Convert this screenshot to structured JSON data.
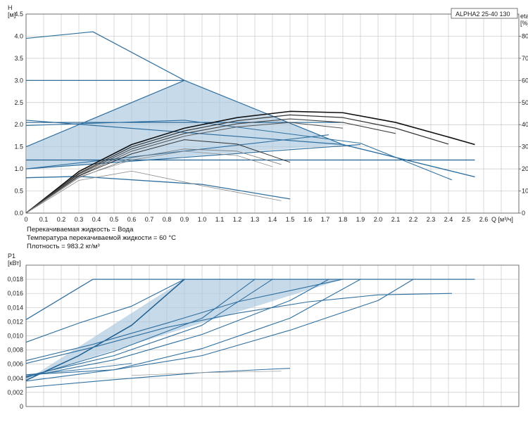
{
  "chart_data": [
    {
      "type": "line",
      "model_label": "ALPHA2 25-40 130",
      "ylabel_lines": [
        "H",
        "[м]"
      ],
      "y2label_lines": [
        "eta",
        "[%]"
      ],
      "xlabel": "Q [м³/ч]",
      "xlim": [
        0,
        2.8
      ],
      "ylim": [
        0,
        4.5
      ],
      "y2lim": [
        0,
        90
      ],
      "x_ticks": [
        "0",
        "0.1",
        "0.2",
        "0.3",
        "0.4",
        "0.5",
        "0.6",
        "0.7",
        "0.8",
        "0.9",
        "1.0",
        "1.1",
        "1.2",
        "1.3",
        "1.4",
        "1.5",
        "1.6",
        "1.7",
        "1.8",
        "1.9",
        "2.0",
        "2.1",
        "2.2",
        "2.3",
        "2.4",
        "2.5",
        "2.6"
      ],
      "y_ticks": [
        "0.0",
        "0.5",
        "1.0",
        "1.5",
        "2.0",
        "2.5",
        "3.0",
        "3.5",
        "4.0",
        "4.5"
      ],
      "y2_ticks": [
        "0",
        "10",
        "20",
        "30",
        "40",
        "50",
        "60",
        "70",
        "80"
      ],
      "notes": [
        "Перекачиваемая жидкость = Вода",
        "Температура перекачиваемой жидкости = 60 °C",
        "Плотность = 983.2 кг/м³"
      ],
      "area": {
        "name": "",
        "points": [
          [
            0,
            1.5
          ],
          [
            0.9,
            3.0
          ],
          [
            1.8,
            1.55
          ],
          [
            0,
            1.0
          ]
        ]
      },
      "series": [
        {
          "points": [
            [
              0,
              3.95
            ],
            [
              0.38,
              4.1
            ],
            [
              0.9,
              3.0
            ],
            [
              1.8,
              1.55
            ],
            [
              2.55,
              0.82
            ]
          ],
          "color": "#2f6f9f",
          "width": 1.2
        },
        {
          "points": [
            [
              0,
              3.0
            ],
            [
              0.9,
              3.0
            ]
          ],
          "color": "#1f5f90",
          "width": 1.2
        },
        {
          "points": [
            [
              0,
              2.1
            ],
            [
              1.8,
              1.55
            ],
            [
              2.55,
              0.82
            ]
          ],
          "color": "#2f6f9f",
          "width": 1.2
        },
        {
          "points": [
            [
              0,
              2.05
            ],
            [
              1.8,
              2.05
            ]
          ],
          "color": "#1f5f90",
          "width": 1.2
        },
        {
          "points": [
            [
              0,
              1.5
            ],
            [
              0.9,
              3.0
            ]
          ],
          "color": "#2f6f9f",
          "width": 1.2
        },
        {
          "points": [
            [
              0,
              1.2
            ],
            [
              2.55,
              1.2
            ]
          ],
          "color": "#1f5f90",
          "width": 1.2
        },
        {
          "points": [
            [
              0,
              1.0
            ],
            [
              1.9,
              1.55
            ]
          ],
          "color": "#2f6f9f",
          "width": 1.2
        },
        {
          "points": [
            [
              0,
              1.0
            ],
            [
              1.72,
              1.77
            ]
          ],
          "color": "#2f6f9f",
          "width": 1.1
        },
        {
          "points": [
            [
              0,
              0.8
            ],
            [
              0.3,
              0.83
            ],
            [
              1.0,
              0.65
            ],
            [
              1.5,
              0.32
            ]
          ],
          "color": "#2f6f9f",
          "width": 1.3
        },
        {
          "points": [
            [
              0,
              1.98
            ],
            [
              0.9,
              2.1
            ],
            [
              1.9,
              1.58
            ],
            [
              2.42,
              0.75
            ]
          ],
          "color": "#2f6f9f",
          "width": 1.1
        },
        {
          "points": [
            [
              0,
              0
            ],
            [
              0.3,
              0.94
            ],
            [
              0.6,
              1.55
            ],
            [
              0.9,
              1.92
            ],
            [
              1.2,
              2.16
            ],
            [
              1.5,
              2.3
            ],
            [
              1.8,
              2.27
            ],
            [
              2.1,
              2.05
            ],
            [
              2.4,
              1.72
            ],
            [
              2.55,
              1.55
            ]
          ],
          "color": "#111111",
          "width": 1.6
        },
        {
          "points": [
            [
              0,
              0
            ],
            [
              0.3,
              0.9
            ],
            [
              0.6,
              1.5
            ],
            [
              0.9,
              1.86
            ],
            [
              1.2,
              2.09
            ],
            [
              1.5,
              2.22
            ],
            [
              1.8,
              2.16
            ],
            [
              2.1,
              1.92
            ],
            [
              2.4,
              1.56
            ]
          ],
          "color": "#333333",
          "width": 1.2
        },
        {
          "points": [
            [
              0,
              0
            ],
            [
              0.3,
              0.88
            ],
            [
              0.6,
              1.45
            ],
            [
              0.9,
              1.8
            ],
            [
              1.2,
              2.02
            ],
            [
              1.5,
              2.13
            ],
            [
              1.8,
              2.05
            ],
            [
              2.1,
              1.8
            ]
          ],
          "color": "#444444",
          "width": 1.1
        },
        {
          "points": [
            [
              0,
              0
            ],
            [
              0.3,
              0.85
            ],
            [
              0.6,
              1.4
            ],
            [
              0.9,
              1.74
            ],
            [
              1.2,
              1.95
            ],
            [
              1.5,
              2.05
            ],
            [
              1.8,
              1.92
            ]
          ],
          "color": "#555555",
          "width": 1.0
        },
        {
          "points": [
            [
              0,
              0
            ],
            [
              0.3,
              0.84
            ],
            [
              0.6,
              1.34
            ],
            [
              0.9,
              1.66
            ],
            [
              1.2,
              1.56
            ],
            [
              1.5,
              1.15
            ]
          ],
          "color": "#333333",
          "width": 1.0
        },
        {
          "points": [
            [
              0,
              0
            ],
            [
              0.3,
              0.8
            ],
            [
              0.6,
              1.25
            ],
            [
              0.9,
              1.45
            ],
            [
              1.2,
              1.4
            ],
            [
              1.45,
              1.1
            ]
          ],
          "color": "#777777",
          "width": 0.8
        },
        {
          "points": [
            [
              0,
              0
            ],
            [
              0.3,
              0.82
            ],
            [
              0.6,
              1.2
            ],
            [
              0.9,
              1.4
            ],
            [
              1.2,
              1.3
            ],
            [
              1.4,
              1.05
            ]
          ],
          "color": "#888888",
          "width": 0.7
        },
        {
          "points": [
            [
              0,
              0
            ],
            [
              0.3,
              0.74
            ],
            [
              0.6,
              0.95
            ],
            [
              1.0,
              0.62
            ],
            [
              1.45,
              0.28
            ]
          ],
          "color": "#888888",
          "width": 0.8
        }
      ]
    },
    {
      "type": "line",
      "ylabel_lines": [
        "P1",
        "[кВт]"
      ],
      "xlim": [
        0,
        2.8
      ],
      "ylim": [
        0,
        0.02
      ],
      "y_ticks": [
        "0",
        "0,002",
        "0,004",
        "0,006",
        "0,008",
        "0,010",
        "0,012",
        "0,014",
        "0,016",
        "0,018"
      ],
      "area": {
        "name": "",
        "points": [
          [
            0,
            0.0037
          ],
          [
            0.9,
            0.018
          ],
          [
            1.8,
            0.018
          ],
          [
            0,
            0.0041
          ]
        ]
      },
      "series": [
        {
          "points": [
            [
              0,
              0.0123
            ],
            [
              0.38,
              0.018
            ],
            [
              2.55,
              0.018
            ]
          ],
          "color": "#2f6f9f",
          "width": 1.3
        },
        {
          "points": [
            [
              0,
              0.0091
            ],
            [
              0.3,
              0.0118
            ],
            [
              0.6,
              0.0142
            ],
            [
              0.9,
              0.018
            ]
          ],
          "color": "#2f6f9f",
          "width": 1.1
        },
        {
          "points": [
            [
              0,
              0.0037
            ],
            [
              0.3,
              0.0072
            ],
            [
              0.6,
              0.0115
            ],
            [
              0.9,
              0.018
            ]
          ],
          "color": "#1f5f90",
          "width": 1.5
        },
        {
          "points": [
            [
              0,
              0.0041
            ],
            [
              0.5,
              0.0078
            ],
            [
              1.0,
              0.0125
            ],
            [
              1.3,
              0.018
            ]
          ],
          "color": "#2f6f9f",
          "width": 1.1
        },
        {
          "points": [
            [
              0,
              0.0043
            ],
            [
              0.5,
              0.0072
            ],
            [
              1.0,
              0.0115
            ],
            [
              1.4,
              0.018
            ]
          ],
          "color": "#2f6f9f",
          "width": 1.1
        },
        {
          "points": [
            [
              0,
              0.0042
            ],
            [
              0.5,
              0.0066
            ],
            [
              1.0,
              0.0102
            ],
            [
              1.5,
              0.015
            ],
            [
              1.72,
              0.018
            ]
          ],
          "color": "#2f6f9f",
          "width": 1.1
        },
        {
          "points": [
            [
              0,
              0.0036
            ],
            [
              0.5,
              0.0052
            ],
            [
              1.0,
              0.0082
            ],
            [
              1.5,
              0.0125
            ],
            [
              1.9,
              0.018
            ]
          ],
          "color": "#2f6f9f",
          "width": 1.1
        },
        {
          "points": [
            [
              0,
              0.0045
            ],
            [
              0.5,
              0.0052
            ],
            [
              1.0,
              0.0072
            ],
            [
              1.5,
              0.0108
            ],
            [
              2.0,
              0.015
            ],
            [
              2.2,
              0.018
            ]
          ],
          "color": "#2f6f9f",
          "width": 1.1
        },
        {
          "points": [
            [
              0,
              0.0061
            ],
            [
              0.4,
              0.0085
            ],
            [
              0.8,
              0.0112
            ],
            [
              1.2,
              0.0132
            ],
            [
              1.6,
              0.0148
            ],
            [
              2.0,
              0.0158
            ],
            [
              2.42,
              0.016
            ]
          ],
          "color": "#2f6f9f",
          "width": 1.1
        },
        {
          "points": [
            [
              0,
              0.0065
            ],
            [
              0.38,
              0.0088
            ],
            [
              0.8,
              0.0118
            ],
            [
              1.2,
              0.0148
            ],
            [
              1.5,
              0.0164
            ],
            [
              1.8,
              0.018
            ]
          ],
          "color": "#2f6f9f",
          "width": 1.1
        },
        {
          "points": [
            [
              0,
              0.0027
            ],
            [
              0.5,
              0.0038
            ],
            [
              1.0,
              0.0048
            ],
            [
              1.4,
              0.0053
            ],
            [
              1.5,
              0.0054
            ]
          ],
          "color": "#2f6f9f",
          "width": 1.1
        },
        {
          "points": [
            [
              0.6,
              0.0044
            ],
            [
              1.0,
              0.0048
            ],
            [
              1.45,
              0.005
            ]
          ],
          "color": "#9a9a9a",
          "width": 0.7
        },
        {
          "points": [
            [
              0,
              0.0045
            ],
            [
              0.3,
              0.0052
            ],
            [
              0.6,
              0.0061
            ]
          ],
          "color": "#2f6f9f",
          "width": 0.9
        }
      ]
    }
  ]
}
